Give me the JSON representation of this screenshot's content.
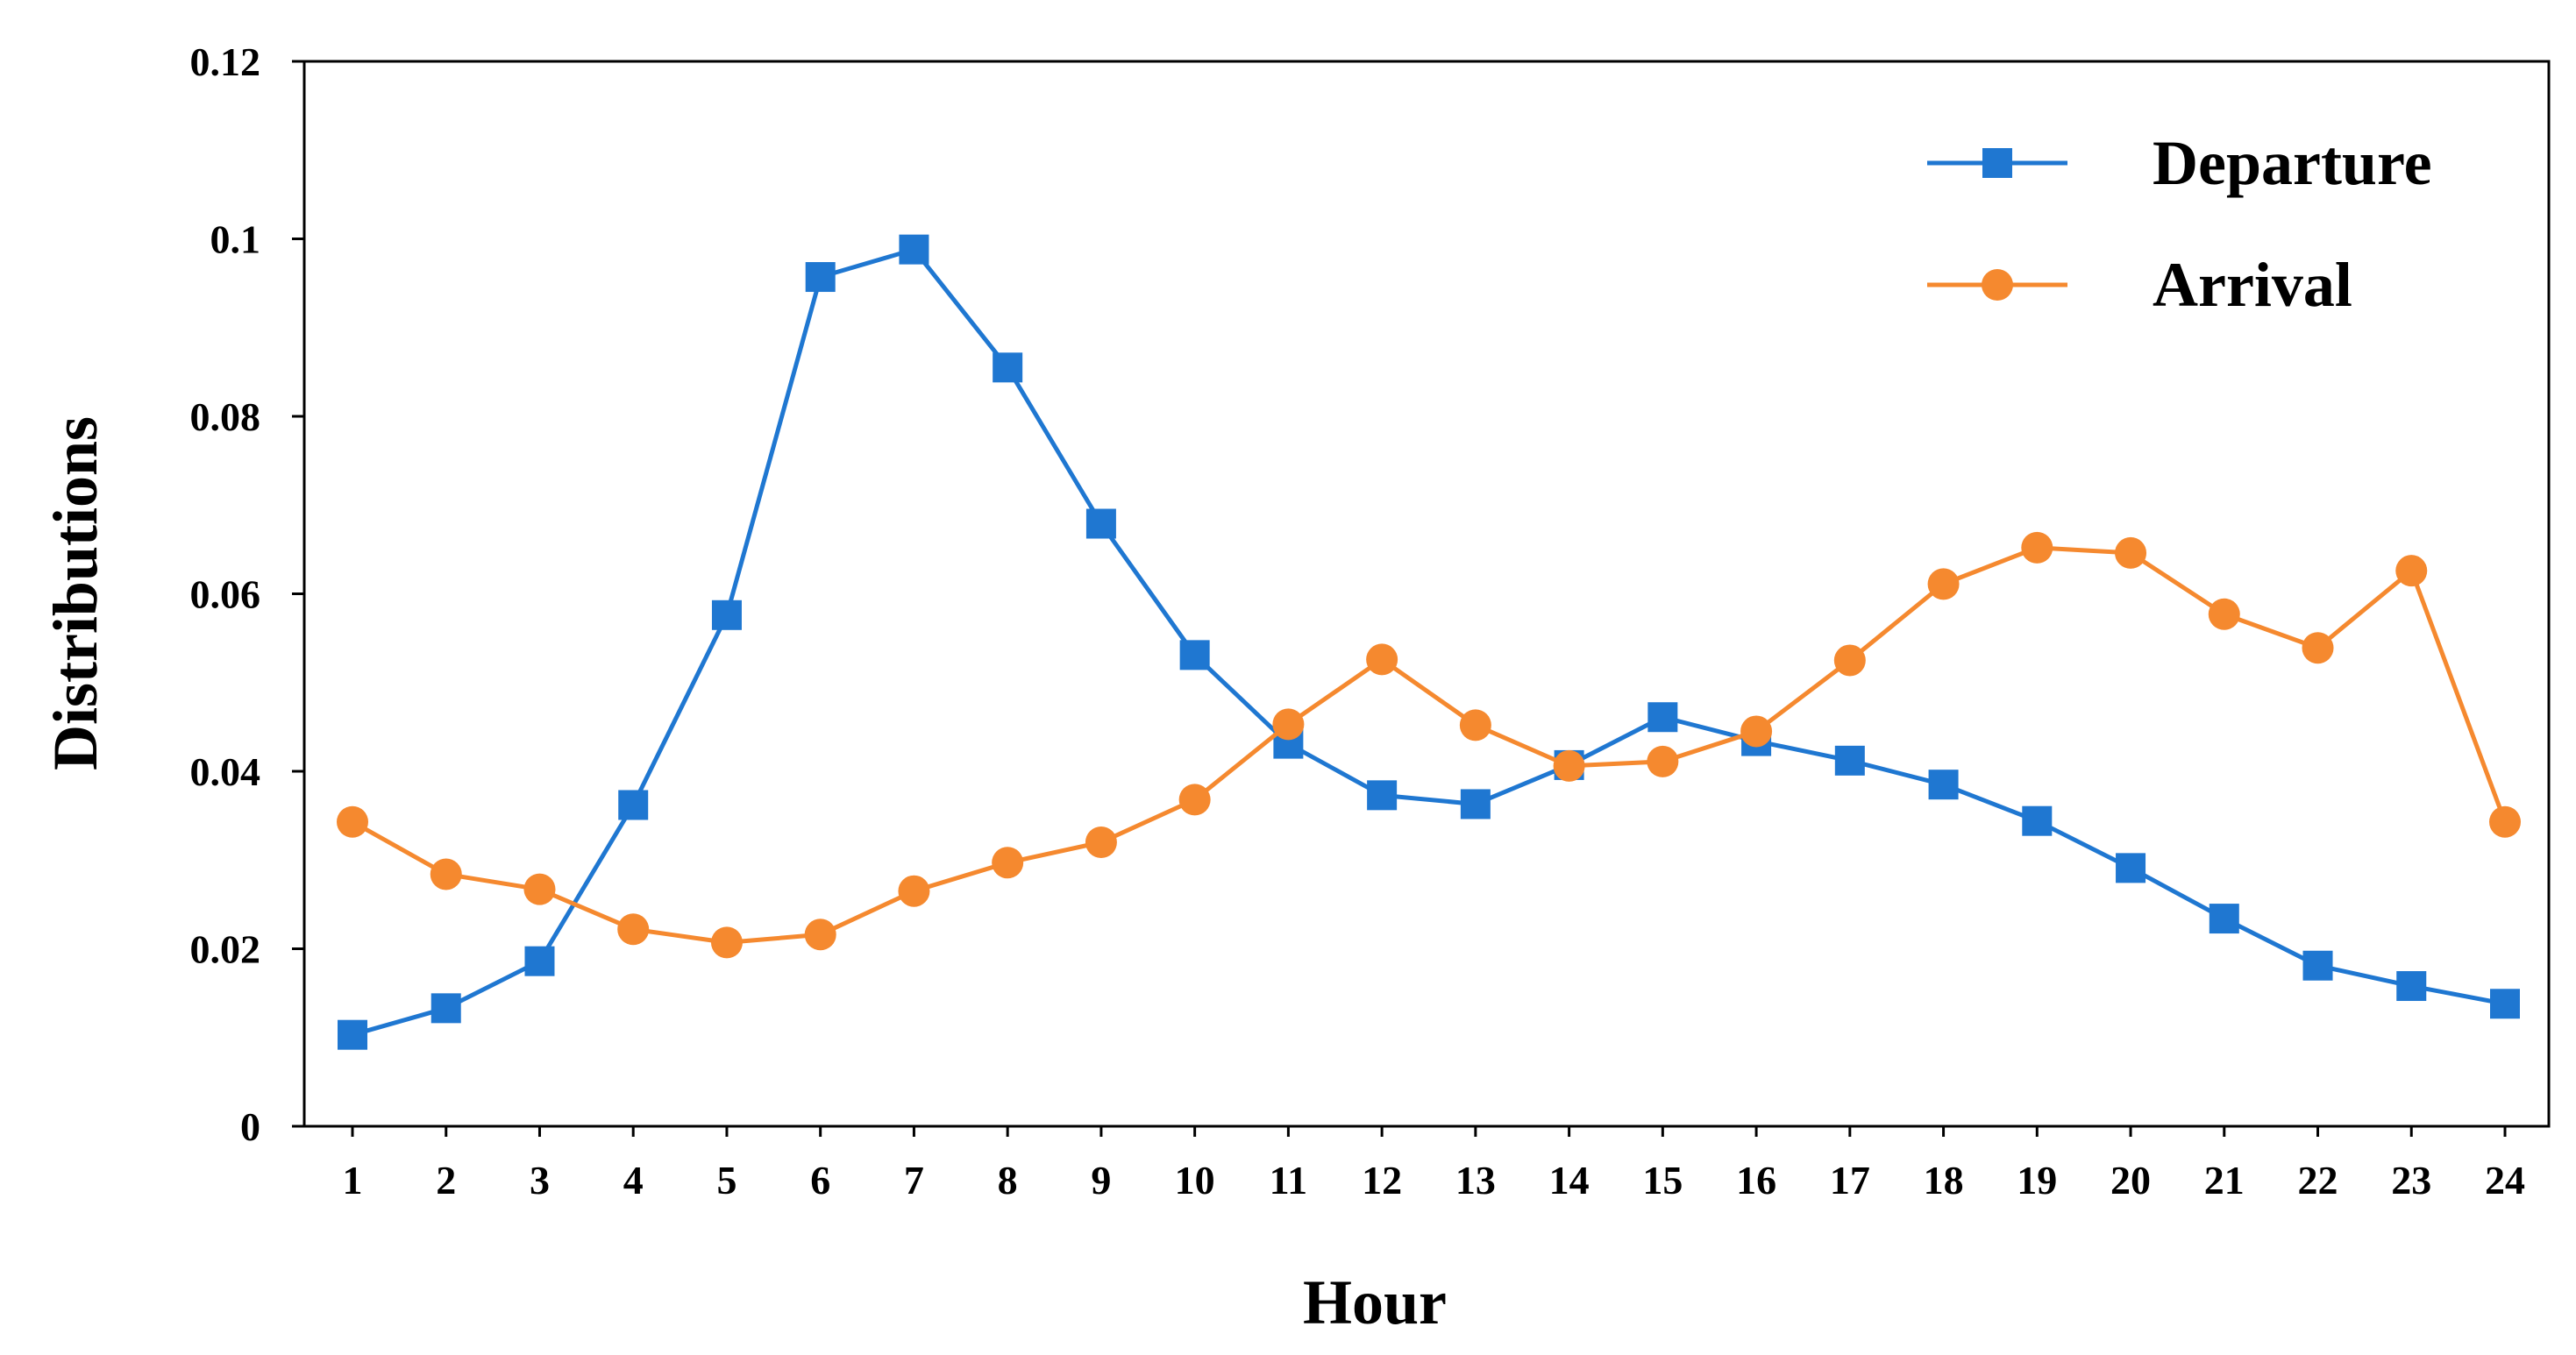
{
  "chart_data": {
    "type": "line",
    "title": "",
    "xlabel": "Hour",
    "ylabel": "Distributions",
    "categories": [
      "1",
      "2",
      "3",
      "4",
      "5",
      "6",
      "7",
      "8",
      "9",
      "10",
      "11",
      "12",
      "13",
      "14",
      "15",
      "16",
      "17",
      "18",
      "19",
      "20",
      "21",
      "22",
      "23",
      "24"
    ],
    "ylim": [
      0,
      0.12
    ],
    "yticks": [
      0,
      0.02,
      0.04,
      0.06,
      0.08,
      0.1,
      0.12
    ],
    "ytick_labels": [
      "0",
      "0.02",
      "0.04",
      "0.06",
      "0.08",
      "0.1",
      "0.12"
    ],
    "grid": false,
    "legend_position": "top-right",
    "series": [
      {
        "name": "Departure",
        "color": "#1f77d1",
        "marker": "square",
        "values": [
          0.0103,
          0.0133,
          0.0186,
          0.0362,
          0.0576,
          0.0957,
          0.0988,
          0.0855,
          0.0679,
          0.0531,
          0.0431,
          0.0373,
          0.0363,
          0.0407,
          0.0461,
          0.0434,
          0.0412,
          0.0385,
          0.0344,
          0.0291,
          0.0234,
          0.0181,
          0.0158,
          0.0138
        ]
      },
      {
        "name": "Arrival",
        "color": "#f5892f",
        "marker": "circle",
        "values": [
          0.0343,
          0.0284,
          0.0267,
          0.0222,
          0.0207,
          0.0216,
          0.0265,
          0.0297,
          0.032,
          0.0368,
          0.0453,
          0.0526,
          0.0452,
          0.0406,
          0.0411,
          0.0445,
          0.0525,
          0.0611,
          0.0652,
          0.0646,
          0.0577,
          0.0539,
          0.0626,
          0.0343
        ]
      }
    ]
  }
}
